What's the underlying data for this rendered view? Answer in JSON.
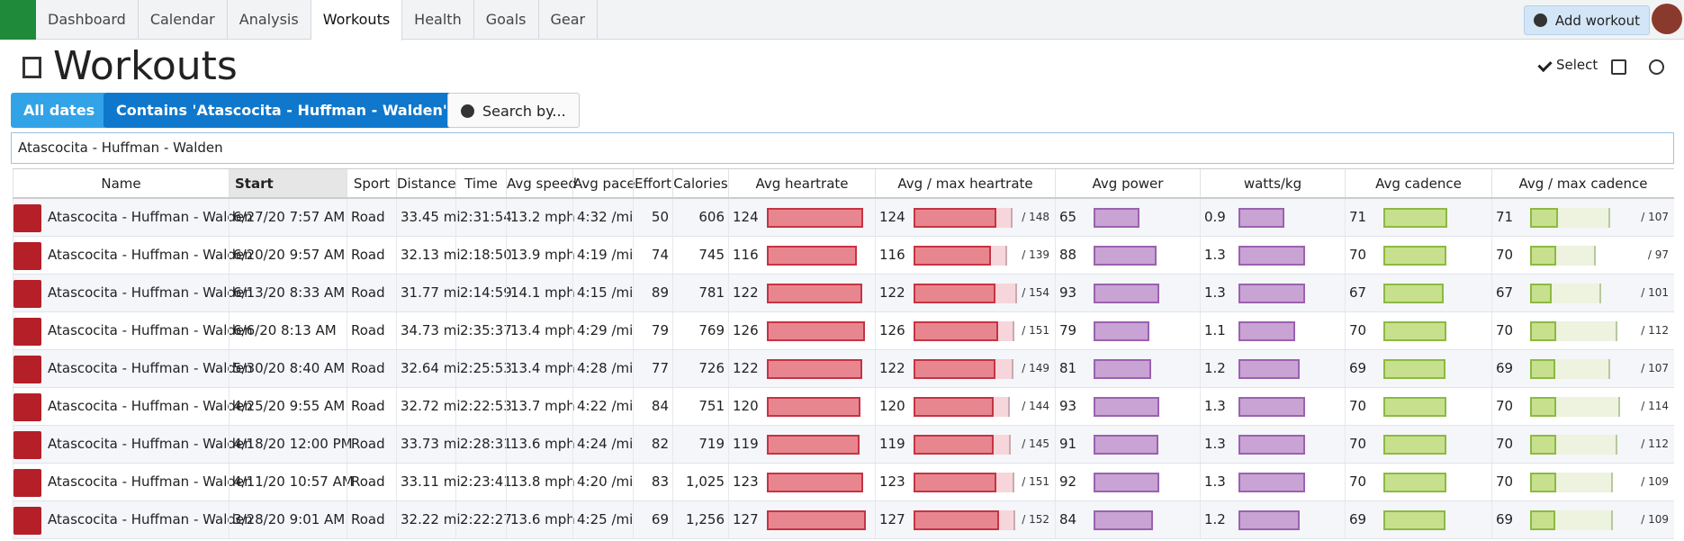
{
  "nav": {
    "tabs": [
      "Dashboard",
      "Calendar",
      "Analysis",
      "Workouts",
      "Health",
      "Goals",
      "Gear"
    ],
    "add_workout": "Add workout"
  },
  "header": {
    "title": "Workouts",
    "select": "Select"
  },
  "filters": {
    "all_dates": "All dates",
    "contains": "Contains 'Atascocita - Huffman - Walden'",
    "search_by": "Search by..."
  },
  "search": "Atascocita - Huffman - Walden",
  "table": {
    "columns": [
      "Name",
      "Start",
      "Sport",
      "Distance",
      "Time",
      "Avg speed",
      "Avg pace",
      "Effort",
      "Calories",
      "Avg heartrate",
      "Avg / max heartrate",
      "Avg power",
      "watts/kg",
      "Avg cadence",
      "Avg / max cadence"
    ],
    "rows": [
      {
        "name": "Atascocita - Huffman - Walden",
        "start": "6/27/20 7:57 AM",
        "sport": "Road",
        "distance": "33.45 mi",
        "time": "2:31:54",
        "avg_speed": "13.2 mph",
        "avg_pace": "4:32 /mi",
        "effort": 50,
        "calories": "606",
        "avg_heartrate": 124,
        "max_heartrate": {
          "value": 148,
          "label": "/ 148"
        },
        "avg_power": 65,
        "watts_per_kg": 0.9,
        "avg_cadence": 71,
        "max_cadence": {
          "value": 107,
          "label": "/ 107"
        }
      },
      {
        "name": "Atascocita - Huffman - Walden",
        "start": "6/20/20 9:57 AM",
        "sport": "Road",
        "distance": "32.13 mi",
        "time": "2:18:50",
        "avg_speed": "13.9 mph",
        "avg_pace": "4:19 /mi",
        "effort": 74,
        "calories": "745",
        "avg_heartrate": 116,
        "max_heartrate": {
          "value": 139,
          "label": "/ 139"
        },
        "avg_power": 88,
        "watts_per_kg": 1.3,
        "avg_cadence": 70,
        "max_cadence": {
          "value": 97,
          "label": "/ 97"
        }
      },
      {
        "name": "Atascocita - Huffman - Walden",
        "start": "6/13/20 8:33 AM",
        "sport": "Road",
        "distance": "31.77 mi",
        "time": "2:14:59",
        "avg_speed": "14.1 mph",
        "avg_pace": "4:15 /mi",
        "effort": 89,
        "calories": "781",
        "avg_heartrate": 122,
        "max_heartrate": {
          "value": 154,
          "label": "/ 154"
        },
        "avg_power": 93,
        "watts_per_kg": 1.3,
        "avg_cadence": 67,
        "max_cadence": {
          "value": 101,
          "label": "/ 101"
        }
      },
      {
        "name": "Atascocita - Huffman - Walden",
        "start": "6/6/20 8:13 AM",
        "sport": "Road",
        "distance": "34.73 mi",
        "time": "2:35:37",
        "avg_speed": "13.4 mph",
        "avg_pace": "4:29 /mi",
        "effort": 79,
        "calories": "769",
        "avg_heartrate": 126,
        "max_heartrate": {
          "value": 151,
          "label": "/ 151"
        },
        "avg_power": 79,
        "watts_per_kg": 1.1,
        "avg_cadence": 70,
        "max_cadence": {
          "value": 112,
          "label": "/ 112"
        }
      },
      {
        "name": "Atascocita - Huffman - Walden",
        "start": "5/30/20 8:40 AM",
        "sport": "Road",
        "distance": "32.64 mi",
        "time": "2:25:53",
        "avg_speed": "13.4 mph",
        "avg_pace": "4:28 /mi",
        "effort": 77,
        "calories": "726",
        "avg_heartrate": 122,
        "max_heartrate": {
          "value": 149,
          "label": "/ 149"
        },
        "avg_power": 81,
        "watts_per_kg": 1.2,
        "avg_cadence": 69,
        "max_cadence": {
          "value": 107,
          "label": "/ 107"
        }
      },
      {
        "name": "Atascocita - Huffman - Walden",
        "start": "4/25/20 9:55 AM",
        "sport": "Road",
        "distance": "32.72 mi",
        "time": "2:22:53",
        "avg_speed": "13.7 mph",
        "avg_pace": "4:22 /mi",
        "effort": 84,
        "calories": "751",
        "avg_heartrate": 120,
        "max_heartrate": {
          "value": 144,
          "label": "/ 144"
        },
        "avg_power": 93,
        "watts_per_kg": 1.3,
        "avg_cadence": 70,
        "max_cadence": {
          "value": 114,
          "label": "/ 114"
        }
      },
      {
        "name": "Atascocita - Huffman - Walden",
        "start": "4/18/20 12:00 PM",
        "sport": "Road",
        "distance": "33.73 mi",
        "time": "2:28:31",
        "avg_speed": "13.6 mph",
        "avg_pace": "4:24 /mi",
        "effort": 82,
        "calories": "719",
        "avg_heartrate": 119,
        "max_heartrate": {
          "value": 145,
          "label": "/ 145"
        },
        "avg_power": 91,
        "watts_per_kg": 1.3,
        "avg_cadence": 70,
        "max_cadence": {
          "value": 112,
          "label": "/ 112"
        }
      },
      {
        "name": "Atascocita - Huffman - Walden",
        "start": "4/11/20 10:57 AM",
        "sport": "Road",
        "distance": "33.11 mi",
        "time": "2:23:41",
        "avg_speed": "13.8 mph",
        "avg_pace": "4:20 /mi",
        "effort": 83,
        "calories": "1,025",
        "avg_heartrate": 123,
        "max_heartrate": {
          "value": 151,
          "label": "/ 151"
        },
        "avg_power": 92,
        "watts_per_kg": 1.3,
        "avg_cadence": 70,
        "max_cadence": {
          "value": 109,
          "label": "/ 109"
        }
      },
      {
        "name": "Atascocita - Huffman - Walden",
        "start": "3/28/20 9:01 AM",
        "sport": "Road",
        "distance": "32.22 mi",
        "time": "2:22:27",
        "avg_speed": "13.6 mph",
        "avg_pace": "4:25 /mi",
        "effort": 69,
        "calories": "1,256",
        "avg_heartrate": 127,
        "max_heartrate": {
          "value": 152,
          "label": "/ 152"
        },
        "avg_power": 84,
        "watts_per_kg": 1.2,
        "avg_cadence": 69,
        "max_cadence": {
          "value": 109,
          "label": "/ 109"
        }
      }
    ]
  }
}
